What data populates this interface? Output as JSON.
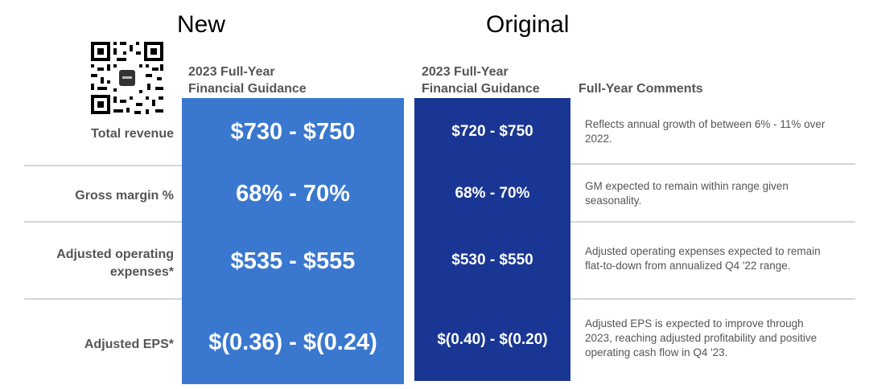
{
  "headers": {
    "new": "New",
    "original": "Original"
  },
  "columns": {
    "new_guidance": [
      "2023 Full-Year",
      "Financial Guidance"
    ],
    "original_guidance": [
      "2023 Full-Year",
      "Financial Guidance"
    ],
    "comments": "Full-Year Comments"
  },
  "rows": [
    {
      "label": [
        "Total revenue"
      ],
      "new": "$730 - $750",
      "original": "$720 - $750",
      "comment": [
        "Reflects annual growth of between 6% - 11% over",
        "2022."
      ]
    },
    {
      "label": [
        "Gross margin %"
      ],
      "new": "68% - 70%",
      "original": "68% - 70%",
      "comment": [
        "GM expected to remain within range given",
        "seasonality."
      ]
    },
    {
      "label": [
        "Adjusted operating",
        "expenses*"
      ],
      "new": "$535 - $555",
      "original": "$530 - $550",
      "comment": [
        "Adjusted operating expenses expected to remain",
        "flat-to-down from annualized Q4 '22 range."
      ]
    },
    {
      "label": [
        "Adjusted EPS*"
      ],
      "new": "$(0.36) - $(0.24)",
      "original": "$(0.40) - $(0.20)",
      "comment": [
        "Adjusted EPS is expected to improve through",
        "2023, reaching adjusted profitability and positive",
        "operating cash flow in Q4 '23."
      ]
    }
  ],
  "colors": {
    "new_panel": "#3a78cf",
    "original_panel": "#1a3694",
    "separator": "#d6d6d6",
    "label_text": "#555555"
  },
  "icons": {
    "qr": "qr-code-icon"
  }
}
